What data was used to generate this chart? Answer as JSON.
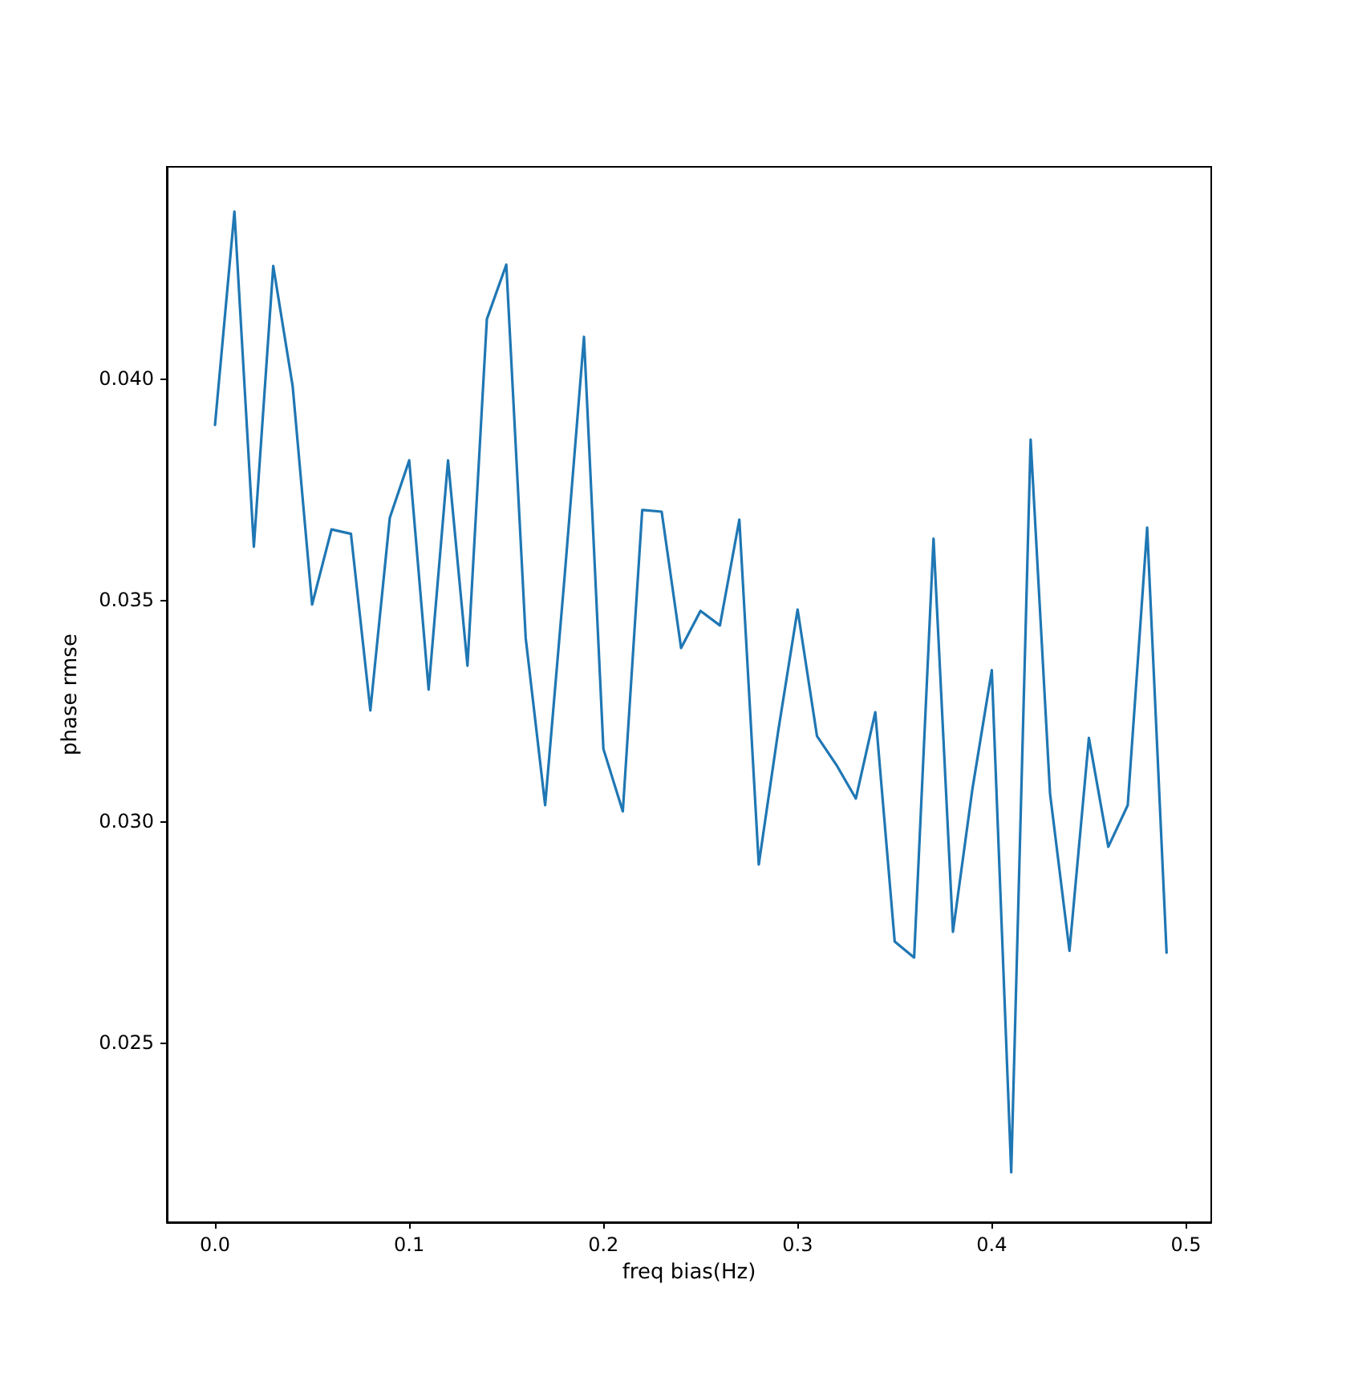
{
  "chart_data": {
    "type": "line",
    "xlabel": "freq bias(Hz)",
    "ylabel": "phase rmse",
    "x": [
      0,
      0.01,
      0.02,
      0.03,
      0.04,
      0.05,
      0.06,
      0.07,
      0.08,
      0.09,
      0.1,
      0.11,
      0.12,
      0.13,
      0.14,
      0.15,
      0.16,
      0.17,
      0.18,
      0.19,
      0.2,
      0.21,
      0.22,
      0.23,
      0.24,
      0.25,
      0.26,
      0.27,
      0.28,
      0.29,
      0.3,
      0.31,
      0.32,
      0.33,
      0.34,
      0.35,
      0.36,
      0.37,
      0.38,
      0.39,
      0.4,
      0.41,
      0.42,
      0.43,
      0.44,
      0.45,
      0.46,
      0.47,
      0.48,
      0.49
    ],
    "series": [
      {
        "color": "#1f77b4",
        "values": [
          0.03895,
          0.04377,
          0.0362,
          0.04254,
          0.03982,
          0.03489,
          0.03659,
          0.03649,
          0.0325,
          0.03685,
          0.03815,
          0.03297,
          0.03815,
          0.03351,
          0.04134,
          0.04257,
          0.03413,
          0.03036,
          0.03551,
          0.04094,
          0.03163,
          0.03022,
          0.03703,
          0.03699,
          0.03391,
          0.03475,
          0.03442,
          0.03681,
          0.02902,
          0.03203,
          0.03478,
          0.03192,
          0.03127,
          0.03051,
          0.03246,
          0.02728,
          0.02692,
          0.03638,
          0.0275,
          0.03072,
          0.03341,
          0.02207,
          0.03862,
          0.03062,
          0.02707,
          0.03188,
          0.02942,
          0.03036,
          0.03663,
          0.02703
        ]
      }
    ],
    "xlim": [
      -0.0248,
      0.513
    ],
    "xticks": [
      {
        "value": 0,
        "label": "0.0"
      },
      0.1,
      0.2,
      0.3,
      0.4,
      0.5
    ],
    "ylim": [
      0.02094,
      0.04478
    ],
    "yticks": [
      {
        "value": 0.025,
        "label": "0.025"
      },
      {
        "value": 0.03,
        "label": "0.030"
      },
      {
        "value": 0.035,
        "label": "0.035"
      },
      {
        "value": 0.04,
        "label": "0.040"
      }
    ],
    "grid": false,
    "marker": "none",
    "line_style": "solid"
  }
}
